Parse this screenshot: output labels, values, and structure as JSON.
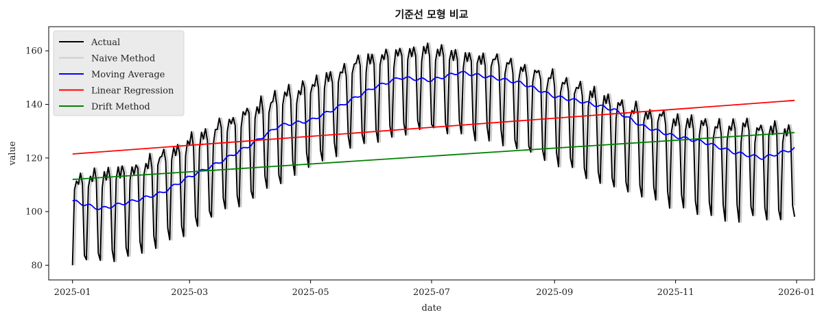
{
  "chart_data": {
    "type": "line",
    "title": "기준선 모형 비교",
    "xlabel": "date",
    "ylabel": "value",
    "xlim": [
      "2024-12-20",
      "2026-01-10"
    ],
    "ylim": [
      74.5,
      169
    ],
    "x_ticks": [
      "2025-01",
      "2025-03",
      "2025-05",
      "2025-07",
      "2025-09",
      "2025-11",
      "2026-01"
    ],
    "y_ticks": [
      80,
      100,
      120,
      140,
      160
    ],
    "legend_position": "top-left",
    "x_start": "2025-01-01",
    "x_end": "2025-12-31",
    "series": [
      {
        "name": "Actual",
        "color": "#000000",
        "description": "daily values with weekly low dip",
        "trend_points": [
          {
            "date": "2025-01-01",
            "high": 114,
            "low": 80
          },
          {
            "date": "2025-02-01",
            "high": 118,
            "low": 84
          },
          {
            "date": "2025-03-01",
            "high": 128,
            "low": 93
          },
          {
            "date": "2025-04-01",
            "high": 140,
            "low": 105
          },
          {
            "date": "2025-05-01",
            "high": 150,
            "low": 118
          },
          {
            "date": "2025-06-01",
            "high": 160,
            "low": 127
          },
          {
            "date": "2025-07-01",
            "high": 162,
            "low": 130
          },
          {
            "date": "2025-08-01",
            "high": 159,
            "low": 127
          },
          {
            "date": "2025-09-01",
            "high": 152,
            "low": 118
          },
          {
            "date": "2025-10-01",
            "high": 142,
            "low": 109
          },
          {
            "date": "2025-11-01",
            "high": 137,
            "low": 101
          },
          {
            "date": "2025-12-01",
            "high": 134,
            "low": 97
          },
          {
            "date": "2025-12-31",
            "high": 133,
            "low": 98
          }
        ]
      },
      {
        "name": "Naive Method",
        "color": "#cccccc",
        "description": "Actual shifted by one day"
      },
      {
        "name": "Moving Average",
        "color": "#0000ff",
        "points": [
          {
            "date": "2025-01-01",
            "value": 104
          },
          {
            "date": "2025-01-15",
            "value": 101
          },
          {
            "date": "2025-02-01",
            "value": 104
          },
          {
            "date": "2025-02-15",
            "value": 107
          },
          {
            "date": "2025-03-01",
            "value": 113
          },
          {
            "date": "2025-03-15",
            "value": 118
          },
          {
            "date": "2025-04-01",
            "value": 125
          },
          {
            "date": "2025-04-15",
            "value": 132
          },
          {
            "date": "2025-05-01",
            "value": 134
          },
          {
            "date": "2025-05-15",
            "value": 139
          },
          {
            "date": "2025-06-01",
            "value": 146
          },
          {
            "date": "2025-06-15",
            "value": 150
          },
          {
            "date": "2025-07-01",
            "value": 149
          },
          {
            "date": "2025-07-15",
            "value": 152
          },
          {
            "date": "2025-08-01",
            "value": 150
          },
          {
            "date": "2025-08-15",
            "value": 148
          },
          {
            "date": "2025-09-01",
            "value": 143
          },
          {
            "date": "2025-09-15",
            "value": 141
          },
          {
            "date": "2025-10-01",
            "value": 138
          },
          {
            "date": "2025-10-15",
            "value": 132
          },
          {
            "date": "2025-11-01",
            "value": 128
          },
          {
            "date": "2025-11-15",
            "value": 126
          },
          {
            "date": "2025-12-01",
            "value": 122
          },
          {
            "date": "2025-12-15",
            "value": 120
          },
          {
            "date": "2025-12-31",
            "value": 123.5
          }
        ]
      },
      {
        "name": "Linear Regression",
        "color": "#ff0000",
        "points": [
          {
            "date": "2025-01-01",
            "value": 121.5
          },
          {
            "date": "2025-12-31",
            "value": 141.5
          }
        ]
      },
      {
        "name": "Drift Method",
        "color": "#008000",
        "points": [
          {
            "date": "2025-01-01",
            "value": 112
          },
          {
            "date": "2025-12-31",
            "value": 129.5
          }
        ]
      }
    ]
  }
}
